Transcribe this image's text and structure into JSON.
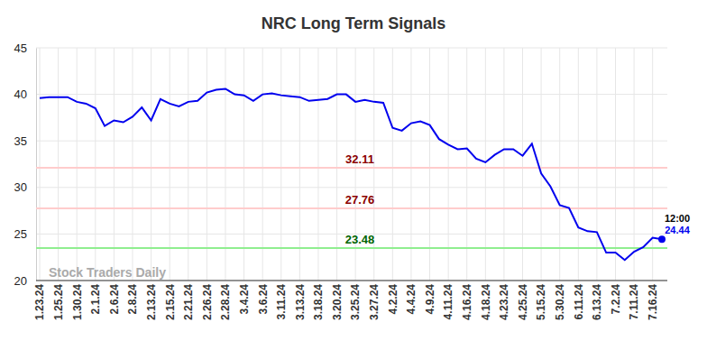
{
  "chart_data": {
    "type": "line",
    "title": "NRC Long Term Signals",
    "watermark": "Stock Traders Daily",
    "last_point_label": "12:00",
    "categories": [
      "1.23.24",
      null,
      "1.25.24",
      null,
      "1.30.24",
      null,
      "2.1.24",
      null,
      "2.6.24",
      null,
      "2.8.24",
      null,
      "2.13.24",
      null,
      "2.15.24",
      null,
      "2.21.24",
      null,
      "2.26.24",
      null,
      "2.28.24",
      null,
      "3.4.24",
      null,
      "3.6.24",
      null,
      "3.11.24",
      null,
      "3.13.24",
      null,
      "3.18.24",
      null,
      "3.20.24",
      null,
      "3.25.24",
      null,
      "3.27.24",
      null,
      "4.2.24",
      null,
      "4.4.24",
      null,
      "4.9.24",
      null,
      "4.11.24",
      null,
      "4.16.24",
      null,
      "4.18.24",
      null,
      "4.23.24",
      null,
      "4.25.24",
      null,
      "5.15.24",
      null,
      "5.30.24",
      null,
      "6.11.24",
      null,
      "6.13.24",
      null,
      "7.2.24",
      null,
      "7.11.24",
      null,
      "7.16.24",
      null
    ],
    "series": [
      {
        "name": "NRC",
        "color": "#0000ee",
        "values": [
          39.6,
          39.7,
          39.7,
          39.7,
          39.2,
          39.0,
          38.5,
          36.6,
          37.2,
          37.0,
          37.6,
          38.6,
          37.2,
          39.5,
          39.0,
          38.7,
          39.2,
          39.3,
          40.2,
          40.5,
          40.6,
          40.0,
          39.9,
          39.3,
          40.0,
          40.1,
          39.9,
          39.8,
          39.7,
          39.3,
          39.4,
          39.5,
          40.0,
          40.0,
          39.2,
          39.4,
          39.2,
          39.1,
          36.4,
          36.1,
          36.9,
          37.1,
          36.7,
          35.2,
          34.6,
          34.1,
          34.2,
          33.1,
          32.7,
          33.5,
          34.1,
          34.1,
          33.4,
          34.7,
          31.5,
          30.1,
          28.1,
          27.8,
          25.7,
          25.3,
          25.2,
          23.0,
          23.0,
          22.2,
          23.1,
          23.6,
          24.6,
          24.44
        ]
      }
    ],
    "reference_lines": [
      {
        "value": 32.11,
        "color": "#ffcccc",
        "label_color": "#8b0000"
      },
      {
        "value": 27.76,
        "color": "#ffcccc",
        "label_color": "#8b0000"
      },
      {
        "value": 23.48,
        "color": "#90ee90",
        "label_color": "#006400"
      }
    ],
    "ylim": [
      20,
      45
    ],
    "yticks": [
      20,
      25,
      30,
      35,
      40,
      45
    ],
    "grid": true
  }
}
